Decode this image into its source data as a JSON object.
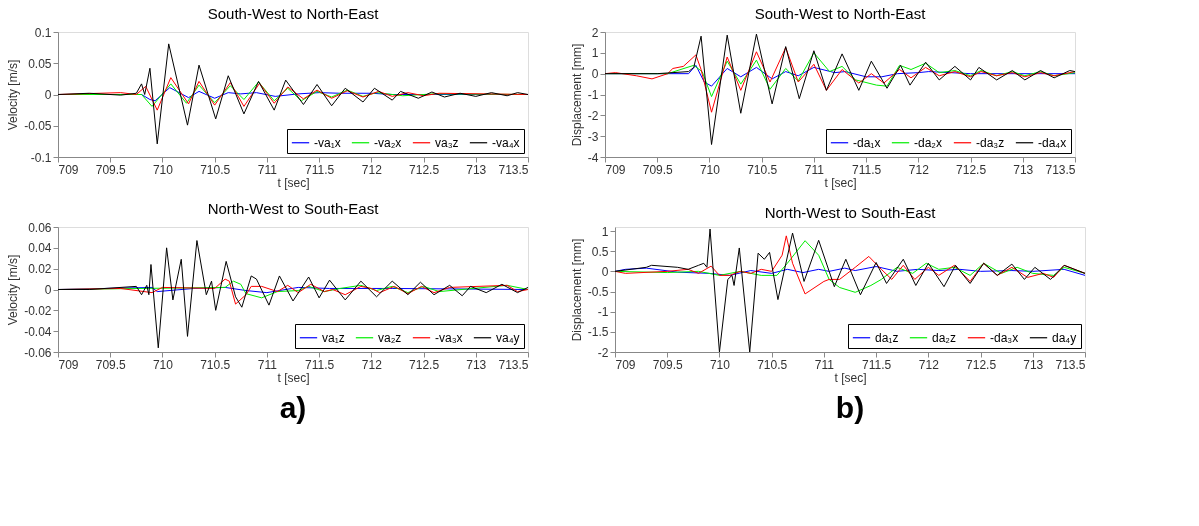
{
  "chart_data": [
    {
      "type": "line",
      "title": "South-West to North-East",
      "xlabel": "t [sec]",
      "ylabel": "Velocity [m/s]",
      "xlim": [
        709,
        713.5
      ],
      "xticks": [
        709,
        709.5,
        710,
        710.5,
        711,
        711.5,
        712,
        712.5,
        713,
        713.5
      ],
      "ylim": [
        -0.1,
        0.1
      ],
      "yticks": [
        -0.1,
        -0.05,
        0,
        0.05,
        0.1
      ],
      "grid": false,
      "legend": "bottom right",
      "marker": "none",
      "line_style": "solid",
      "series": [
        {
          "name": "-va₁x",
          "color": "#0000ff",
          "x": [
            709,
            709.8,
            709.88,
            709.93,
            710.07,
            710.25,
            710.35,
            710.5,
            710.63,
            710.75,
            710.9,
            711.08,
            711.3,
            711.5,
            711.7,
            712,
            712.2,
            712.5,
            713.5
          ],
          "values": [
            0,
            0,
            -0.008,
            -0.01,
            0.011,
            -0.005,
            0.005,
            -0.006,
            0.003,
            0.001,
            0.003,
            -0.003,
            0.001,
            0.003,
            0.002,
            0.002,
            0,
            0,
            0
          ]
        },
        {
          "name": "-va₂x",
          "color": "#00ee00",
          "x": [
            709,
            709.8,
            709.9,
            710.08,
            710.23,
            710.35,
            710.5,
            710.65,
            710.78,
            710.92,
            711.07,
            711.2,
            711.33,
            711.48,
            711.62,
            711.77,
            711.92,
            712.05,
            712.3,
            712.6,
            713.5
          ],
          "values": [
            0,
            0,
            -0.019,
            0.017,
            -0.014,
            0.015,
            -0.013,
            0.014,
            -0.008,
            0.02,
            -0.01,
            0.01,
            -0.01,
            0.005,
            -0.004,
            0.007,
            -0.003,
            0.003,
            -0.002,
            0.001,
            0
          ]
        },
        {
          "name": "va₃z",
          "color": "#ff0000",
          "x": [
            709,
            709.6,
            709.75,
            709.84,
            709.95,
            710.08,
            710.25,
            710.35,
            710.5,
            710.65,
            710.78,
            710.93,
            711.07,
            711.2,
            711.35,
            711.48,
            711.62,
            711.77,
            711.92,
            712.07,
            712.2,
            712.35,
            712.5,
            712.65,
            713.5
          ],
          "values": [
            0,
            0.003,
            0,
            0.013,
            -0.025,
            0.027,
            -0.015,
            0.021,
            -0.017,
            0.019,
            -0.019,
            0.018,
            -0.014,
            0.012,
            -0.007,
            0.007,
            -0.006,
            0.006,
            -0.004,
            0.005,
            -0.003,
            0.003,
            -0.002,
            0.002,
            0
          ]
        },
        {
          "name": "-va₄x",
          "color": "#000000",
          "x": [
            709,
            709.3,
            709.6,
            709.75,
            709.8,
            709.83,
            709.88,
            709.95,
            710.06,
            710.24,
            710.35,
            710.51,
            710.63,
            710.78,
            710.92,
            711.07,
            711.18,
            711.35,
            711.48,
            711.62,
            711.75,
            711.92,
            712.03,
            712.2,
            712.28,
            712.45,
            712.58,
            712.7,
            712.85,
            713,
            713.15,
            713.3,
            713.4,
            713.5
          ],
          "values": [
            0,
            0.002,
            -0.001,
            0.002,
            0.017,
            0,
            0.042,
            -0.079,
            0.081,
            -0.049,
            0.047,
            -0.039,
            0.03,
            -0.031,
            0.021,
            -0.025,
            0.023,
            -0.016,
            0.016,
            -0.018,
            0.01,
            -0.012,
            0.01,
            -0.009,
            0.005,
            -0.006,
            0.004,
            -0.004,
            0.002,
            -0.003,
            0.003,
            -0.002,
            0.003,
            0
          ]
        }
      ]
    },
    {
      "type": "line",
      "title": "South-West to North-East",
      "xlabel": "t [sec]",
      "ylabel": "Displacement [mm]",
      "xlim": [
        709,
        713.5
      ],
      "xticks": [
        709,
        709.5,
        710,
        710.5,
        711,
        711.5,
        712,
        712.5,
        713,
        713.5
      ],
      "ylim": [
        -4,
        2
      ],
      "yticks": [
        -4,
        -3,
        -2,
        -1,
        0,
        1,
        2
      ],
      "grid": false,
      "legend": "bottom right",
      "marker": "none",
      "line_style": "solid",
      "series": [
        {
          "name": "-da₁x",
          "color": "#0000ff",
          "x": [
            709,
            709.8,
            709.87,
            709.95,
            710.02,
            710.17,
            710.3,
            710.45,
            710.6,
            710.73,
            710.85,
            711,
            711.2,
            711.3,
            711.5,
            711.65,
            711.8,
            712,
            712.1,
            712.5,
            713.5
          ],
          "values": [
            0,
            0,
            0.4,
            -0.4,
            -0.6,
            0.25,
            -0.15,
            0.3,
            -0.25,
            0.1,
            -0.1,
            0.3,
            0.05,
            0.1,
            -0.15,
            -0.15,
            0,
            0.05,
            0.1,
            0,
            0
          ]
        },
        {
          "name": "-da₂x",
          "color": "#00ee00",
          "x": [
            709,
            709.6,
            709.85,
            709.93,
            710.02,
            710.17,
            710.3,
            710.45,
            710.58,
            710.73,
            710.85,
            711,
            711.15,
            711.27,
            711.4,
            711.6,
            711.7,
            711.82,
            711.93,
            712.07,
            712.2,
            712.35,
            712.5,
            712.6,
            712.75,
            712.9,
            713.02,
            713.17,
            713.3,
            713.5
          ],
          "values": [
            0,
            0,
            0.4,
            0.1,
            -1.1,
            0.6,
            -0.5,
            0.65,
            -0.75,
            0.25,
            -0.35,
            1,
            0.1,
            0.35,
            -0.3,
            -0.55,
            -0.6,
            0.4,
            0.2,
            0.5,
            0.05,
            0.15,
            -0.1,
            0.15,
            -0.1,
            0.1,
            -0.1,
            0.1,
            -0.1,
            0.05
          ]
        },
        {
          "name": "-da₃z",
          "color": "#ff0000",
          "x": [
            709,
            709.1,
            709.3,
            709.45,
            709.6,
            709.65,
            709.75,
            709.87,
            709.92,
            710.02,
            710.17,
            710.3,
            710.45,
            710.58,
            710.73,
            710.85,
            711,
            711.12,
            711.27,
            711.43,
            711.55,
            711.67,
            711.82,
            711.93,
            712.07,
            712.2,
            712.35,
            712.5,
            712.6,
            712.75,
            712.9,
            713.02,
            713.17,
            713.3,
            713.5
          ],
          "values": [
            0,
            0.05,
            -0.1,
            -0.25,
            0,
            0.25,
            0.35,
            0.9,
            0.2,
            -1.85,
            0.8,
            -0.8,
            1.05,
            -0.4,
            1.25,
            -0.4,
            0.45,
            -0.8,
            0.2,
            -0.45,
            0,
            -0.45,
            0.2,
            -0.2,
            0.3,
            -0.1,
            0.1,
            -0.15,
            0.1,
            -0.1,
            0.05,
            -0.15,
            0.05,
            -0.1,
            0.1
          ]
        },
        {
          "name": "-da₄x",
          "color": "#000000",
          "x": [
            709,
            709.5,
            709.8,
            709.85,
            709.92,
            710.02,
            710.17,
            710.3,
            710.45,
            710.6,
            710.73,
            710.86,
            711,
            711.12,
            711.27,
            711.43,
            711.55,
            711.7,
            711.83,
            711.92,
            712.07,
            712.2,
            712.35,
            712.5,
            712.58,
            712.75,
            712.9,
            713.02,
            713.17,
            713.3,
            713.45,
            713.5
          ],
          "values": [
            0,
            0,
            0.1,
            0.3,
            1.8,
            -3.4,
            1.85,
            -1.9,
            1.9,
            -1.45,
            1.3,
            -1.2,
            1.1,
            -0.8,
            0.95,
            -0.8,
            0.6,
            -0.7,
            0.4,
            -0.55,
            0.55,
            -0.3,
            0.35,
            -0.3,
            0.3,
            -0.3,
            0.15,
            -0.3,
            0.15,
            -0.2,
            0.15,
            0.1
          ]
        }
      ]
    },
    {
      "type": "line",
      "title": "North-West to South-East",
      "xlabel": "t [sec]",
      "ylabel": "Velocity [m/s]",
      "xlim": [
        709,
        713.5
      ],
      "xticks": [
        709,
        709.5,
        710,
        710.5,
        711,
        711.5,
        712,
        712.5,
        713,
        713.5
      ],
      "ylim": [
        -0.06,
        0.06
      ],
      "yticks": [
        -0.06,
        -0.04,
        -0.02,
        0,
        0.02,
        0.04,
        0.06
      ],
      "grid": false,
      "legend": "bottom right",
      "marker": "none",
      "line_style": "solid",
      "annotations": [
        "a)"
      ],
      "series": [
        {
          "name": "va₁z",
          "color": "#0000ff",
          "x": [
            709,
            709.9,
            709.95,
            710.3,
            710.6,
            710.8,
            711,
            711.3,
            711.6,
            712.2,
            713.5
          ],
          "values": [
            0,
            0.002,
            -0.002,
            0.001,
            0.002,
            -0.001,
            -0.003,
            0.002,
            0.001,
            0.001,
            0
          ]
        },
        {
          "name": "va₂z",
          "color": "#00ee00",
          "x": [
            709,
            710.6,
            710.68,
            710.75,
            710.8,
            710.95,
            711.1,
            711.3,
            711.4,
            711.55,
            711.7,
            711.9,
            712.05,
            712.2,
            712.35,
            712.5,
            712.65,
            713.3,
            713.5
          ],
          "values": [
            0,
            0.002,
            0.008,
            0.005,
            -0.004,
            -0.008,
            -0.002,
            -0.001,
            0.003,
            -0.002,
            0.001,
            0.004,
            -0.001,
            0.003,
            -0.003,
            0.003,
            -0.002,
            0.004,
            0
          ]
        },
        {
          "name": "-va₃x",
          "color": "#ff0000",
          "x": [
            709,
            709.6,
            709.9,
            710,
            710.5,
            710.6,
            710.64,
            710.7,
            710.8,
            710.85,
            710.95,
            711.1,
            711.2,
            711.3,
            711.42,
            711.55,
            711.63,
            711.75,
            711.9,
            712,
            712.08,
            712.22,
            712.35,
            712.48,
            712.6,
            712.75,
            713.3,
            713.4,
            713.5
          ],
          "values": [
            0,
            0.001,
            -0.003,
            0.002,
            0.001,
            0.01,
            0.008,
            -0.014,
            -0.005,
            0.003,
            0.003,
            -0.002,
            0.004,
            -0.003,
            0.005,
            -0.002,
            0,
            -0.005,
            0.003,
            0.001,
            -0.003,
            0.003,
            -0.004,
            0.003,
            -0.003,
            0.002,
            0.004,
            -0.002,
            0
          ]
        },
        {
          "name": "va₄y",
          "color": "#000000",
          "x": [
            709,
            709.3,
            709.75,
            709.8,
            709.85,
            709.87,
            709.89,
            709.96,
            710.04,
            710.1,
            710.18,
            710.24,
            710.33,
            710.42,
            710.47,
            710.51,
            710.61,
            710.7,
            710.76,
            710.85,
            710.9,
            711.02,
            711.12,
            711.25,
            711.4,
            711.5,
            711.6,
            711.75,
            711.9,
            712.05,
            712.2,
            712.35,
            712.47,
            712.6,
            712.75,
            712.87,
            712.95,
            713.1,
            713.25,
            713.4,
            713.5
          ],
          "values": [
            0,
            0,
            0.003,
            -0.005,
            0.004,
            -0.005,
            0.024,
            -0.056,
            0.04,
            -0.01,
            0.029,
            -0.045,
            0.047,
            -0.005,
            0.008,
            -0.02,
            0.027,
            -0.007,
            -0.017,
            0.013,
            0.01,
            -0.015,
            0.013,
            -0.011,
            0.012,
            -0.008,
            0.009,
            -0.01,
            0.008,
            -0.007,
            0.008,
            -0.005,
            0.007,
            -0.005,
            0.004,
            -0.006,
            0.003,
            -0.003,
            0.005,
            -0.003,
            0.002
          ]
        }
      ]
    },
    {
      "type": "line",
      "title": "North-West to South-East",
      "xlabel": "t [sec]",
      "ylabel": "Displacement [mm]",
      "xlim": [
        709,
        713.5
      ],
      "xticks": [
        709,
        709.5,
        710,
        710.5,
        711,
        711.5,
        712,
        712.5,
        713,
        713.5
      ],
      "ylim": [
        -2,
        1.1
      ],
      "yticks": [
        -2,
        -1.5,
        -1,
        -0.5,
        0,
        0.5,
        1
      ],
      "grid": false,
      "legend": "bottom right",
      "marker": "none",
      "line_style": "solid",
      "annotations": [
        "b)"
      ],
      "series": [
        {
          "name": "da₁z",
          "color": "#0000ff",
          "x": [
            709,
            709.1,
            709.3,
            709.6,
            709.9,
            710.1,
            710.3,
            710.5,
            710.65,
            710.8,
            710.95,
            711.05,
            711.2,
            711.3,
            711.5,
            711.7,
            711.9,
            712.1,
            712.3,
            712.5,
            712.8,
            713,
            713.3,
            713.5
          ],
          "values": [
            0,
            0.05,
            0.08,
            -0.02,
            -0.05,
            -0.1,
            0.02,
            -0.05,
            0.05,
            -0.03,
            0.05,
            0,
            0.08,
            0.02,
            0.12,
            0,
            0.05,
            0.02,
            0.05,
            0,
            0.02,
            0,
            0.05,
            -0.1
          ]
        },
        {
          "name": "da₂z",
          "color": "#00ee00",
          "x": [
            709,
            709.5,
            709.8,
            710,
            710.2,
            710.4,
            710.55,
            710.65,
            710.82,
            710.95,
            711.05,
            711.15,
            711.3,
            711.45,
            711.55,
            711.7,
            711.85,
            711.98,
            712.1,
            712.25,
            712.4,
            712.53,
            712.7,
            712.85,
            713,
            713.2,
            713.3,
            713.5
          ],
          "values": [
            0,
            -0.03,
            0,
            -0.1,
            0,
            -0.1,
            -0.1,
            0.2,
            0.76,
            0.4,
            -0.2,
            -0.4,
            -0.52,
            -0.35,
            -0.2,
            0.1,
            -0.05,
            0.2,
            0.05,
            0.1,
            -0.1,
            0.2,
            -0.05,
            0.1,
            -0.05,
            -0.1,
            0.1,
            -0.05
          ]
        },
        {
          "name": "-da₃x",
          "color": "#ff0000",
          "x": [
            709,
            709.1,
            709.5,
            709.7,
            709.8,
            709.92,
            710,
            710.1,
            710.2,
            710.3,
            710.4,
            710.5,
            710.6,
            710.64,
            710.7,
            710.82,
            711,
            711.05,
            711.15,
            711.3,
            711.43,
            711.55,
            711.65,
            711.76,
            711.87,
            712,
            712.1,
            712.25,
            712.4,
            712.53,
            712.66,
            712.8,
            712.95,
            713.1,
            713.2,
            713.3,
            713.5
          ],
          "values": [
            0,
            -0.05,
            0,
            0.05,
            -0.05,
            0.13,
            -0.1,
            -0.1,
            0,
            -0.05,
            0.05,
            0,
            0.4,
            0.88,
            0.2,
            -0.56,
            -0.25,
            -0.2,
            -0.2,
            0.1,
            0.37,
            0.05,
            -0.2,
            0.15,
            -0.2,
            0.1,
            -0.1,
            0.15,
            -0.25,
            0.2,
            -0.1,
            0.1,
            -0.15,
            -0.05,
            -0.15,
            0.15,
            -0.05
          ]
        },
        {
          "name": "da₄y",
          "color": "#000000",
          "x": [
            709,
            709.3,
            709.35,
            709.6,
            709.7,
            709.8,
            709.85,
            709.88,
            709.91,
            710,
            710.08,
            710.12,
            710.14,
            710.19,
            710.29,
            710.37,
            710.43,
            710.48,
            710.56,
            710.7,
            710.81,
            710.95,
            711.1,
            711.21,
            711.35,
            711.5,
            711.6,
            711.76,
            711.88,
            712,
            712.15,
            712.26,
            712.4,
            712.53,
            712.66,
            712.8,
            712.92,
            713.02,
            713.17,
            713.3,
            713.5
          ],
          "values": [
            0,
            0.1,
            0.15,
            0.1,
            0.05,
            0.15,
            0.2,
            0.1,
            1.05,
            -2,
            -0.2,
            -0.1,
            -0.35,
            0.58,
            -2,
            0.45,
            0.3,
            0.47,
            -0.7,
            0.95,
            -0.25,
            0.77,
            -0.38,
            0.3,
            -0.58,
            0.22,
            -0.3,
            0.3,
            -0.35,
            0.2,
            -0.38,
            0.15,
            -0.3,
            0.2,
            -0.1,
            0.18,
            -0.2,
            0.1,
            -0.2,
            0.15,
            -0.05
          ]
        }
      ]
    }
  ]
}
